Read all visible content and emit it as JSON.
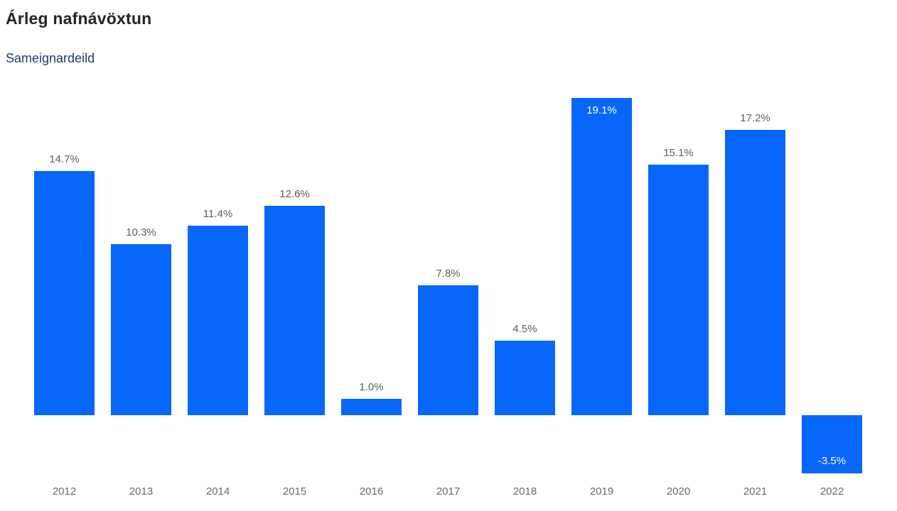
{
  "header": {
    "title": "Árleg nafnávöxtun",
    "subtitle": "Sameignardeild"
  },
  "colors": {
    "bar": "#0667fa",
    "title": "#252423",
    "subtitle": "#1f3a6e",
    "label_outside": "#605e5c",
    "label_inside": "#ffffff",
    "axis_label": "#6a6a6a",
    "background": "#ffffff"
  },
  "chart_data": {
    "type": "bar",
    "title": "Árleg nafnávöxtun",
    "subtitle": "Sameignardeild",
    "categories": [
      "2012",
      "2013",
      "2014",
      "2015",
      "2016",
      "2017",
      "2018",
      "2019",
      "2020",
      "2021",
      "2022"
    ],
    "values": [
      14.7,
      10.3,
      11.4,
      12.6,
      1.0,
      7.8,
      4.5,
      19.1,
      15.1,
      17.2,
      -3.5
    ],
    "labels": [
      "14.7%",
      "10.3%",
      "11.4%",
      "12.6%",
      "1.0%",
      "7.8%",
      "4.5%",
      "19.1%",
      "15.1%",
      "17.2%",
      "-3.5%"
    ],
    "xlabel": "",
    "ylabel": "",
    "unit": "%",
    "ylim": [
      -3.5,
      19.1
    ],
    "grid": false,
    "legend": false,
    "axes_drawn": false,
    "data_labels": "outside-gray, inside-white when bar reaches plot top or value is negative"
  }
}
